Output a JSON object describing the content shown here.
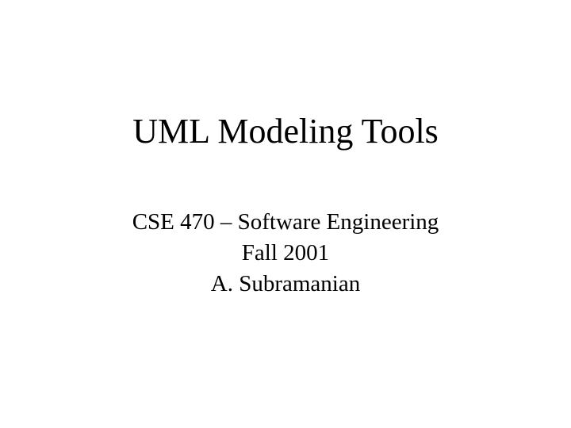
{
  "slide": {
    "title": "UML Modeling Tools",
    "course": "CSE 470 – Software Engineering",
    "term": "Fall 2001",
    "author": "A. Subramanian"
  },
  "style": {
    "background_color": "#ffffff",
    "text_color": "#000000",
    "title_fontsize": 44,
    "subtitle_fontsize": 29,
    "font_family": "Times New Roman"
  }
}
